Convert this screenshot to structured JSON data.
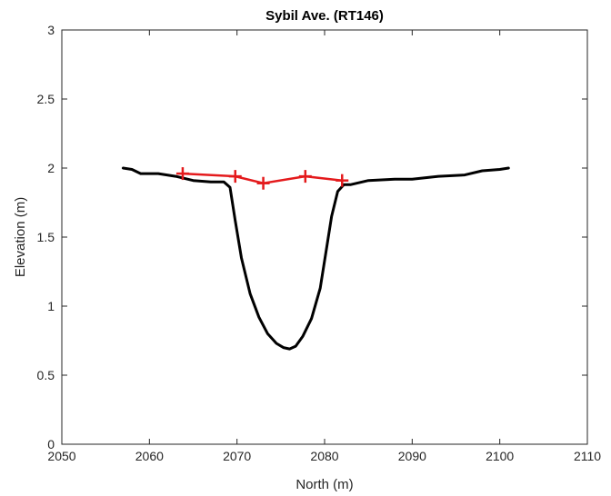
{
  "chart_data": {
    "type": "line",
    "title": "Sybil Ave. (RT146)",
    "xlabel": "North (m)",
    "ylabel": "Elevation (m)",
    "xlim": [
      2050,
      2110
    ],
    "ylim": [
      0,
      3
    ],
    "xticks": [
      2050,
      2060,
      2070,
      2080,
      2090,
      2100,
      2110
    ],
    "yticks": [
      0,
      0.5,
      1,
      1.5,
      2,
      2.5,
      3
    ],
    "xtick_labels": [
      "2050",
      "2060",
      "2070",
      "2080",
      "2090",
      "2100",
      "2110"
    ],
    "ytick_labels": [
      "0",
      "0.5",
      "1",
      "1.5",
      "2",
      "2.5",
      "3"
    ],
    "grid": false,
    "series": [
      {
        "color": "#000000",
        "marker": "none",
        "x": [
          2057.0,
          2058.0,
          2059.0,
          2061.0,
          2063.0,
          2065.0,
          2067.0,
          2068.5,
          2069.2,
          2069.8,
          2070.5,
          2071.5,
          2072.5,
          2073.5,
          2074.5,
          2075.3,
          2076.0,
          2076.7,
          2077.5,
          2078.5,
          2079.5,
          2080.3,
          2080.8,
          2081.5,
          2082.2,
          2083.0,
          2085.0,
          2088.0,
          2090.0,
          2093.0,
          2096.0,
          2098.0,
          2100.0,
          2101.0
        ],
        "y": [
          2.0,
          1.99,
          1.96,
          1.96,
          1.94,
          1.91,
          1.9,
          1.9,
          1.86,
          1.62,
          1.35,
          1.09,
          0.92,
          0.8,
          0.73,
          0.7,
          0.69,
          0.71,
          0.78,
          0.91,
          1.13,
          1.45,
          1.65,
          1.83,
          1.88,
          1.88,
          1.91,
          1.92,
          1.92,
          1.94,
          1.95,
          1.98,
          1.99,
          2.0
        ]
      },
      {
        "color": "#e41a1c",
        "marker": "+",
        "x": [
          2063.8,
          2069.8,
          2073.0,
          2077.8,
          2082.0
        ],
        "y": [
          1.96,
          1.94,
          1.89,
          1.94,
          1.91
        ]
      }
    ]
  }
}
